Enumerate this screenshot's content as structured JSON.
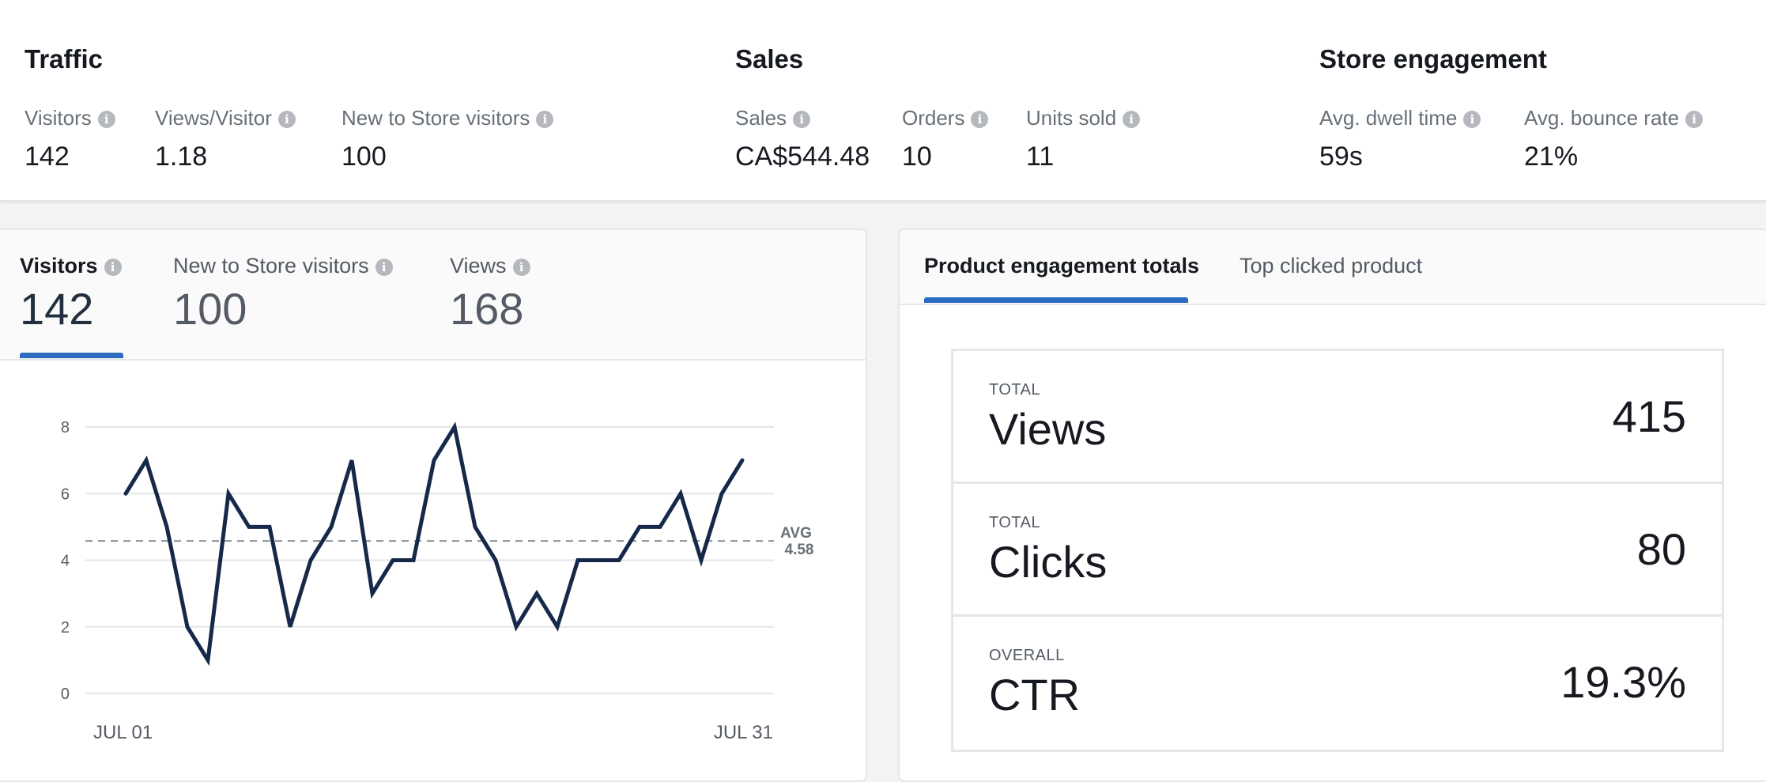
{
  "summary": {
    "traffic": {
      "title": "Traffic",
      "metrics": [
        {
          "label": "Visitors",
          "value": "142"
        },
        {
          "label": "Views/Visitor",
          "value": "1.18"
        },
        {
          "label": "New to Store visitors",
          "value": "100"
        }
      ]
    },
    "sales": {
      "title": "Sales",
      "metrics": [
        {
          "label": "Sales",
          "value": "CA$544.48"
        },
        {
          "label": "Orders",
          "value": "10"
        },
        {
          "label": "Units sold",
          "value": "11"
        }
      ]
    },
    "engagement": {
      "title": "Store engagement",
      "metrics": [
        {
          "label": "Avg. dwell time",
          "value": "59s"
        },
        {
          "label": "Avg. bounce rate",
          "value": "21%"
        }
      ]
    },
    "info_glyph": "i"
  },
  "chart_tabs": [
    {
      "label": "Visitors",
      "value": "142",
      "active": true
    },
    {
      "label": "New to Store visitors",
      "value": "100",
      "active": false
    },
    {
      "label": "Views",
      "value": "168",
      "active": false
    }
  ],
  "chart_data": {
    "type": "line",
    "x_start_label": "JUL 01",
    "x_end_label": "JUL 31",
    "x": [
      1,
      2,
      3,
      4,
      5,
      6,
      7,
      8,
      9,
      10,
      11,
      12,
      13,
      14,
      15,
      16,
      17,
      18,
      19,
      20,
      21,
      22,
      23,
      24,
      25,
      26,
      27,
      28,
      29,
      30,
      31
    ],
    "series": [
      {
        "values": [
          6,
          7,
          5,
          2,
          1,
          6,
          5,
          5,
          2,
          4,
          5,
          7,
          3,
          4,
          4,
          7,
          8,
          5,
          4,
          2,
          3,
          2,
          4,
          4,
          4,
          5,
          5,
          6,
          4,
          6,
          7
        ],
        "color": "#16294a"
      }
    ],
    "yticks": [
      0,
      2,
      4,
      6,
      8
    ],
    "ylim": [
      0,
      8
    ],
    "grid": true,
    "average": {
      "label": "AVG",
      "value": 4.58,
      "value_text": "4.58"
    }
  },
  "engagement_tabs": [
    {
      "label": "Product engagement totals",
      "active": true
    },
    {
      "label": "Top clicked product",
      "active": false
    }
  ],
  "totals": [
    {
      "caption": "TOTAL",
      "name": "Views",
      "value": "415"
    },
    {
      "caption": "TOTAL",
      "name": "Clicks",
      "value": "80"
    },
    {
      "caption": "OVERALL",
      "name": "CTR",
      "value": "19.3%"
    }
  ],
  "colors": {
    "accent": "#2b6cc1",
    "line": "#16294a"
  }
}
